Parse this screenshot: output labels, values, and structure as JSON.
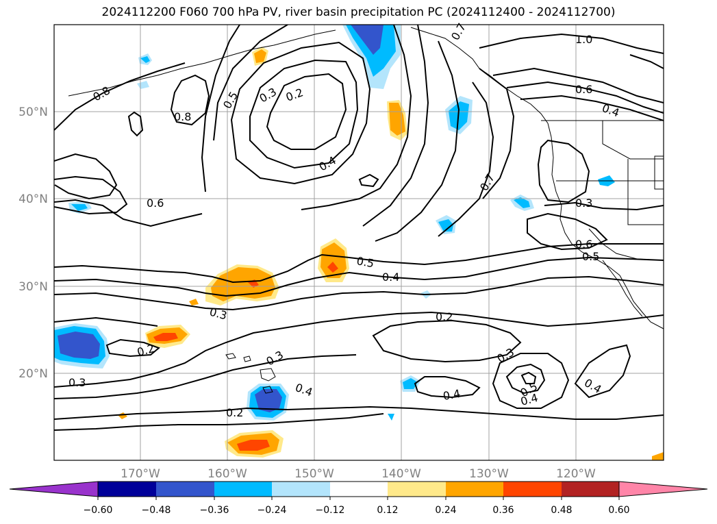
{
  "title": "2024112200 F060 700 hPa PV, river basin precipitation PC (2024112400 - 2024112700)",
  "map": {
    "lat_labels": [
      "50°N",
      "40°N",
      "30°N",
      "20°N"
    ],
    "lon_labels": [
      "170°W",
      "160°W",
      "150°W",
      "140°W",
      "130°W",
      "120°W"
    ],
    "contour_labels": [
      "1.0",
      "0.8",
      "0.5",
      "0.3",
      "0.2",
      "0.8",
      "0.4",
      "0.7",
      "0.6",
      "0.4",
      "0.7",
      "0.6",
      "0.3",
      "0.6",
      "0.5",
      "0.5",
      "0.4",
      "0.3",
      "0.2",
      "0.2",
      "0.3",
      "0.3",
      "0.4",
      "0.4",
      "0.2",
      "0.3",
      "0.5",
      "0.4",
      "0.4"
    ]
  },
  "colorbar": {
    "ticks": [
      "−0.60",
      "−0.48",
      "−0.36",
      "−0.24",
      "−0.12",
      "0.12",
      "0.24",
      "0.36",
      "0.48",
      "0.60"
    ],
    "colors": [
      "#9933cc",
      "#000099",
      "#3355cc",
      "#00bbff",
      "#b3e5fc",
      "#ffffff",
      "#ffe98a",
      "#ffa500",
      "#ff4500",
      "#b22222",
      "#ff85a8"
    ]
  },
  "palette": {
    "orange": "#ffa500",
    "light_yellow": "#ffe98a",
    "red_orange": "#ff4500",
    "cyan": "#00bbff",
    "light_blue": "#b3e5fc",
    "blue": "#3355cc"
  }
}
